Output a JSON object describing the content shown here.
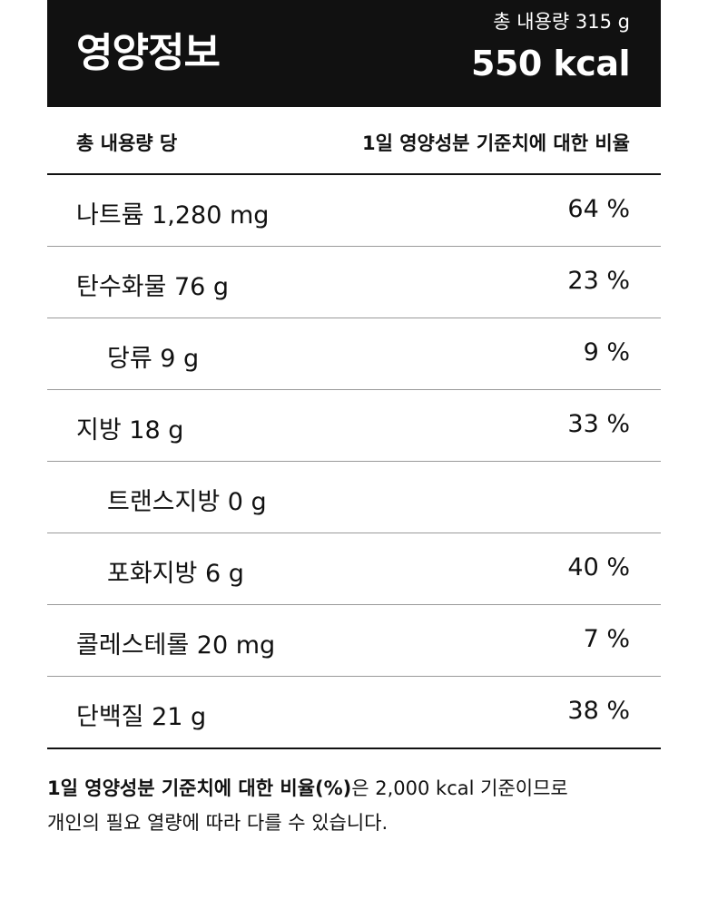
{
  "header": {
    "title": "영양정보",
    "total_amount": "총 내용량 315 g",
    "calories": "550 kcal"
  },
  "columns": {
    "left": "총 내용량 당",
    "right": "1일 영양성분 기준치에 대한 비율"
  },
  "nutrients": [
    {
      "name": "나트륨 1,280 mg",
      "percent": "64 %",
      "sub": false
    },
    {
      "name": "탄수화물 76 g",
      "percent": "23 %",
      "sub": false
    },
    {
      "name": "당류 9 g",
      "percent": "9 %",
      "sub": true
    },
    {
      "name": "지방 18 g",
      "percent": "33 %",
      "sub": false
    },
    {
      "name": "트랜스지방 0 g",
      "percent": "",
      "sub": true
    },
    {
      "name": "포화지방 6 g",
      "percent": "40 %",
      "sub": true
    },
    {
      "name": "콜레스테롤 20 mg",
      "percent": "7 %",
      "sub": false
    },
    {
      "name": "단백질 21 g",
      "percent": "38 %",
      "sub": false
    }
  ],
  "footnote": {
    "bold": "1일 영양성분 기준치에 대한 비율(%)",
    "line1_rest": "은 2,000 kcal 기준이므로",
    "line2": "개인의 필요 열량에 따라 다를 수 있습니다."
  }
}
